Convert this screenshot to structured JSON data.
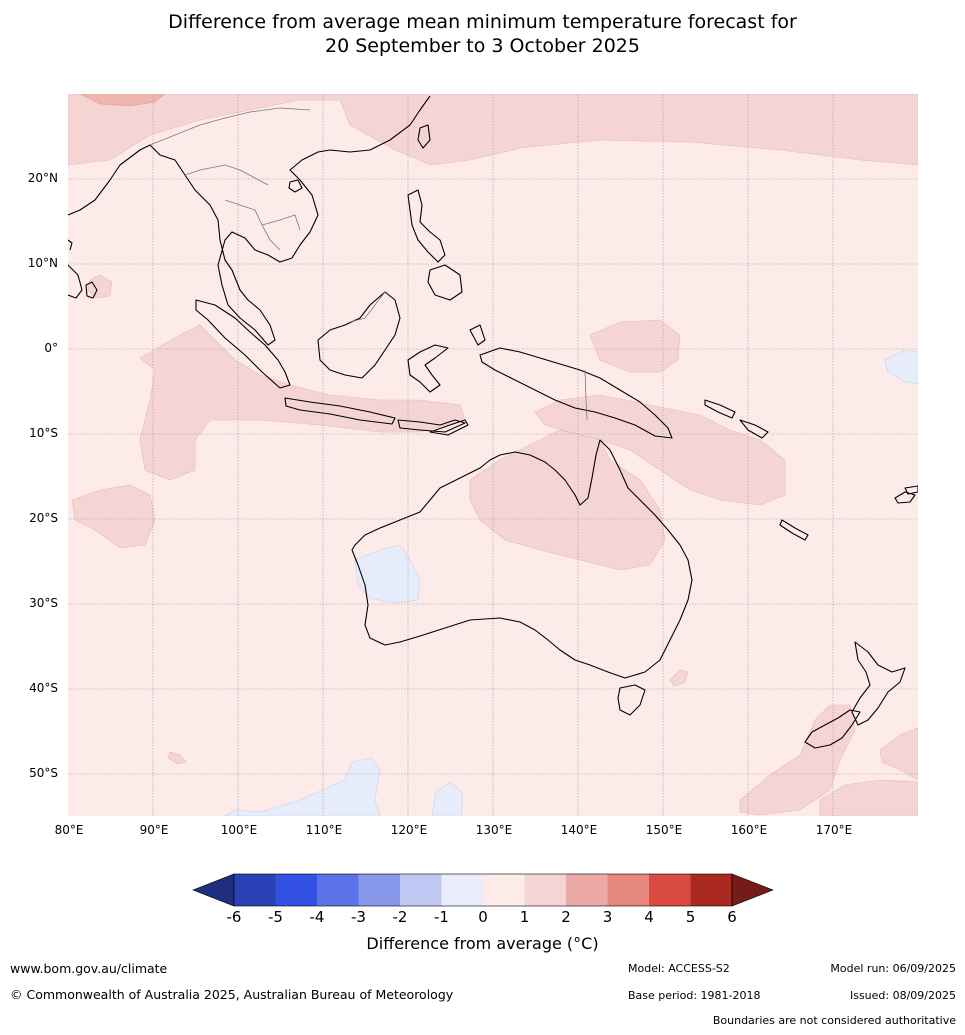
{
  "title": {
    "line1": "Difference from average mean minimum temperature forecast for",
    "line2": "20 September to 3 October 2025"
  },
  "map": {
    "lat_labels": [
      "20°N",
      "10°N",
      "0°",
      "10°S",
      "20°S",
      "30°S",
      "40°S",
      "50°S"
    ],
    "lon_labels": [
      "80°E",
      "90°E",
      "100°E",
      "110°E",
      "120°E",
      "130°E",
      "140°E",
      "150°E",
      "160°E",
      "170°E"
    ],
    "extent": {
      "lon": [
        80,
        180
      ],
      "lat": [
        -55,
        30
      ]
    },
    "dominant_anomaly_category": "0 to 1",
    "colors": {
      "bg_0_1": "#fcebe9",
      "band_1_2": "#f5d5d4",
      "band_2_3": "#f0b4b0",
      "band_neg": "#e7ecfb"
    }
  },
  "colorbar": {
    "ticks": [
      "-6",
      "-5",
      "-4",
      "-3",
      "-2",
      "-1",
      "0",
      "1",
      "2",
      "3",
      "4",
      "5",
      "6"
    ],
    "colors": [
      "#1f2f7f",
      "#2a40b5",
      "#3352e3",
      "#5b73e6",
      "#8798ea",
      "#c1c8f3",
      "#e9ecfb",
      "#fcebe9",
      "#f5d5d4",
      "#ecaaa6",
      "#e78880",
      "#d94b40",
      "#aa2a22",
      "#761c18"
    ],
    "label": "Difference from average (°C)"
  },
  "footer": {
    "url": "www.bom.gov.au/climate",
    "copyright": "© Commonwealth of Australia 2025, Australian Bureau of Meteorology",
    "model": "Model: ACCESS-S2",
    "base_period": "Base period: 1981-2018",
    "model_run": "Model run: 06/09/2025",
    "issued": "Issued: 08/09/2025",
    "disclaimer": "Boundaries are not considered authoritative"
  }
}
